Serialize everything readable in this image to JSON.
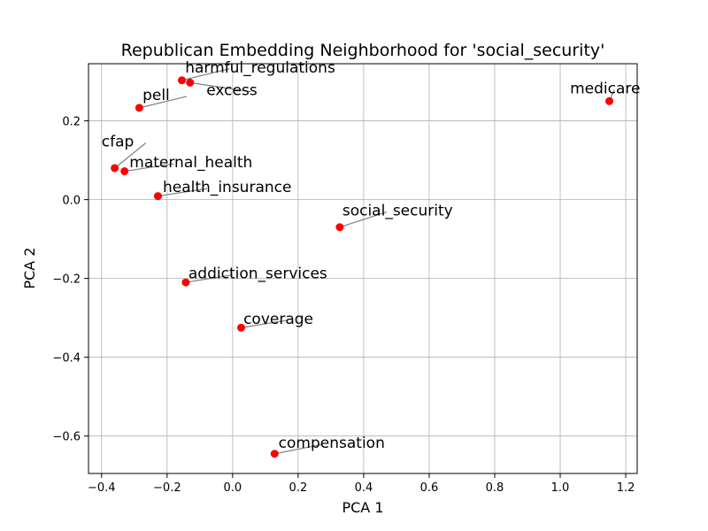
{
  "chart_data": {
    "type": "scatter",
    "title": "Republican Embedding Neighborhood for 'social_security'",
    "xlabel": "PCA 1",
    "ylabel": "PCA 2",
    "xlim": [
      -0.44,
      1.235
    ],
    "ylim": [
      -0.695,
      0.345
    ],
    "xticks": [
      -0.4,
      -0.2,
      0.0,
      0.2,
      0.4,
      0.6,
      0.8,
      1.0,
      1.2
    ],
    "yticks": [
      -0.6,
      -0.4,
      -0.2,
      0.0,
      0.2
    ],
    "xtick_labels": [
      "−0.4",
      "−0.2",
      "0.0",
      "0.2",
      "0.4",
      "0.6",
      "0.8",
      "1.0",
      "1.2"
    ],
    "ytick_labels": [
      "−0.6",
      "−0.4",
      "−0.2",
      "0.0",
      "0.2"
    ],
    "grid": true,
    "marker_color": "#ff0000",
    "connector_color": "#808080",
    "points": [
      {
        "label": "harmful_regulations",
        "x": -0.155,
        "y": 0.303,
        "label_x": -0.145,
        "label_y": 0.323
      },
      {
        "label": "excess",
        "x": -0.13,
        "y": 0.297,
        "label_x": -0.08,
        "label_y": 0.265
      },
      {
        "label": "pell",
        "x": -0.285,
        "y": 0.233,
        "label_x": -0.275,
        "label_y": 0.253
      },
      {
        "label": "medicare",
        "x": 1.15,
        "y": 0.25,
        "label_x": 1.03,
        "label_y": 0.27
      },
      {
        "label": "cfap",
        "x": -0.36,
        "y": 0.08,
        "label_x": -0.4,
        "label_y": 0.135
      },
      {
        "label": "maternal_health",
        "x": -0.33,
        "y": 0.072,
        "label_x": -0.315,
        "label_y": 0.082
      },
      {
        "label": "health_insurance",
        "x": -0.228,
        "y": 0.009,
        "label_x": -0.213,
        "label_y": 0.019
      },
      {
        "label": "social_security",
        "x": 0.327,
        "y": -0.07,
        "label_x": 0.335,
        "label_y": -0.04
      },
      {
        "label": "addiction_services",
        "x": -0.143,
        "y": -0.21,
        "label_x": -0.135,
        "label_y": -0.2
      },
      {
        "label": "coverage",
        "x": 0.026,
        "y": -0.325,
        "label_x": 0.033,
        "label_y": -0.315
      },
      {
        "label": "compensation",
        "x": 0.128,
        "y": -0.645,
        "label_x": 0.14,
        "label_y": -0.63
      }
    ]
  }
}
